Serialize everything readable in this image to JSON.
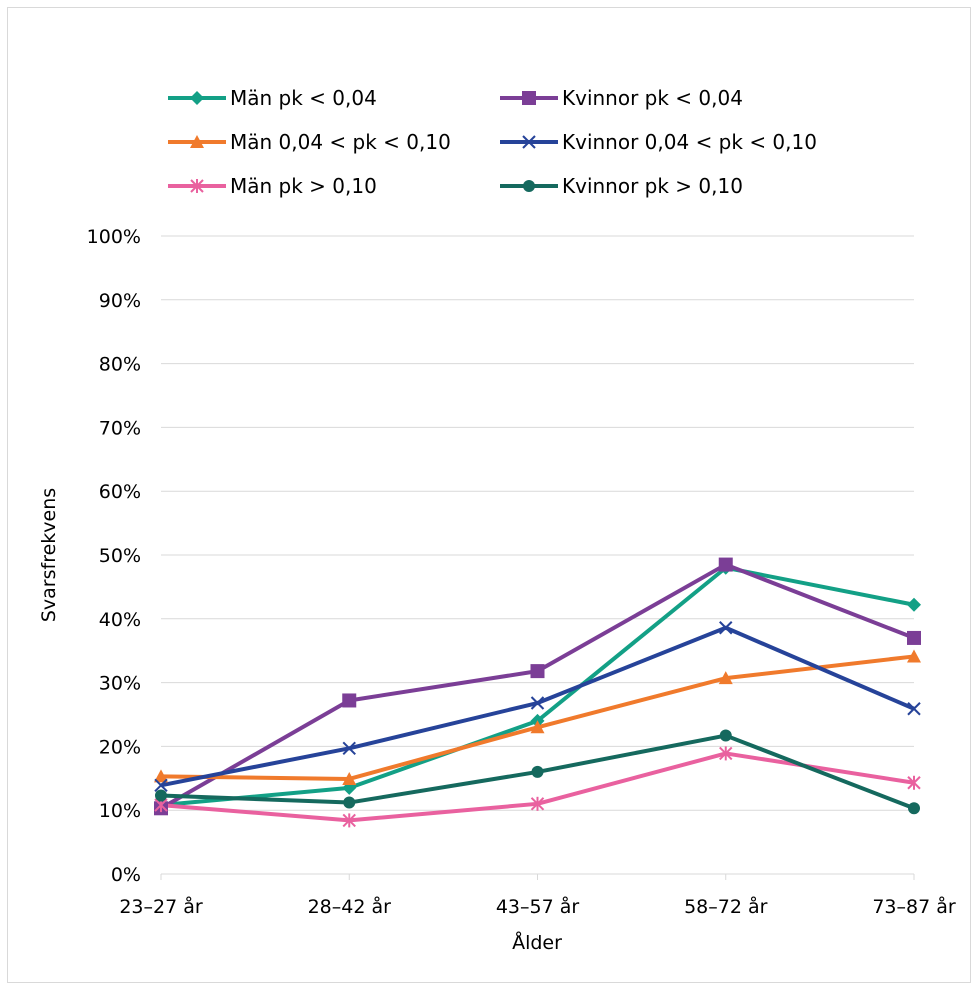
{
  "chart_data": {
    "type": "line",
    "xlabel": "Ålder",
    "ylabel": "Svarsfrekvens",
    "categories": [
      "23–27 år",
      "28–42 år",
      "43–57 år",
      "58–72 år",
      "73–87 år"
    ],
    "ylim": [
      0,
      100
    ],
    "yticks": [
      "0%",
      "10%",
      "20%",
      "30%",
      "40%",
      "50%",
      "60%",
      "70%",
      "80%",
      "90%",
      "100%"
    ],
    "grid": "horizontal",
    "legend_placement": "top",
    "series": [
      {
        "name": "Män pk < 0,04",
        "values": [
          10.8,
          13.5,
          24.0,
          48.0,
          42.2
        ],
        "color": "#13a086",
        "marker": "diamond"
      },
      {
        "name": "Kvinnor pk < 0,04",
        "values": [
          10.3,
          27.2,
          31.8,
          48.5,
          37.0
        ],
        "color": "#7b3e96",
        "marker": "square"
      },
      {
        "name": "Män 0,04 < pk < 0,10",
        "values": [
          15.3,
          14.9,
          23.0,
          30.7,
          34.1
        ],
        "color": "#f07a2c",
        "marker": "triangle"
      },
      {
        "name": "Kvinnor 0,04 < pk < 0,10",
        "values": [
          13.9,
          19.7,
          26.8,
          38.6,
          25.9
        ],
        "color": "#264399",
        "marker": "x"
      },
      {
        "name": "Män pk > 0,10",
        "values": [
          10.8,
          8.4,
          11.0,
          18.9,
          14.3
        ],
        "color": "#e9619f",
        "marker": "star"
      },
      {
        "name": "Kvinnor pk > 0,10",
        "values": [
          12.3,
          11.2,
          16.0,
          21.7,
          10.3
        ],
        "color": "#15695e",
        "marker": "circle"
      }
    ]
  }
}
